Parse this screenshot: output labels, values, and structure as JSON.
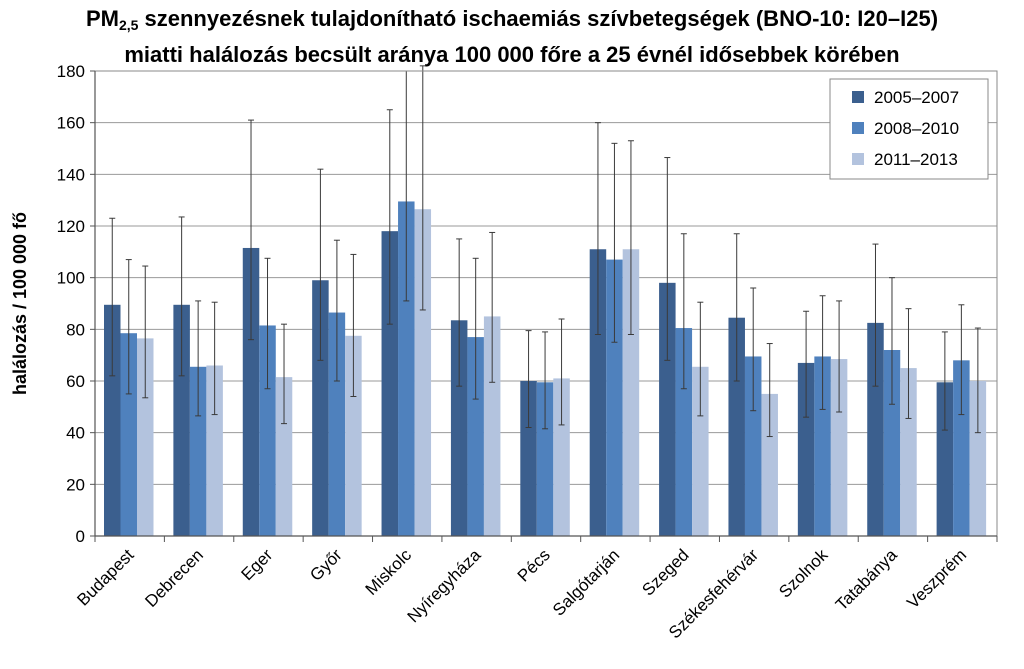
{
  "title": {
    "line1_prefix": "PM",
    "line1_sub": "2,5",
    "line1_rest": " szennyezésnek tulajdonítható ischaemiás szívbetegségek (BNO-10: I20–I25)",
    "line2": "miatti halálozás becsült aránya 100 000 főre a 25 évnél idősebbek körében"
  },
  "chart_data": {
    "type": "bar",
    "title": "PM2,5 szennyezésnek tulajdonítható ischaemiás szívbetegségek (BNO-10: I20–I25) miatti halálozás becsült aránya 100 000 főre a 25 évnél idősebbek körében",
    "xlabel": "",
    "ylabel": "halálozás / 100 000 fő",
    "ylim": [
      0,
      180
    ],
    "yticks": [
      0,
      20,
      40,
      60,
      80,
      100,
      120,
      140,
      160,
      180
    ],
    "grid": true,
    "legend_position": "top-right",
    "categories": [
      "Budapest",
      "Debrecen",
      "Eger",
      "Győr",
      "Miskolc",
      "Nyíregyháza",
      "Pécs",
      "Salgótarján",
      "Szeged",
      "Székesfehérvár",
      "Szolnok",
      "Tatabánya",
      "Veszprém"
    ],
    "series": [
      {
        "name": "2005–2007",
        "color": "#3b5f8e",
        "values": [
          89.5,
          89.5,
          111.5,
          99,
          118,
          83.5,
          60,
          111,
          98,
          84.5,
          67,
          82.5,
          59.5
        ],
        "error_low": [
          62,
          62,
          76,
          68,
          82,
          58,
          42,
          78,
          68,
          60,
          46,
          58,
          41
        ],
        "error_high": [
          123,
          123.5,
          161,
          142,
          165,
          115,
          79.5,
          160,
          146.5,
          117,
          87,
          113,
          79
        ]
      },
      {
        "name": "2008–2010",
        "color": "#4f81bd",
        "values": [
          78.5,
          65.5,
          81.5,
          86.5,
          129.5,
          77,
          59.5,
          107,
          80.5,
          69.5,
          69.5,
          72,
          68
        ],
        "error_low": [
          55,
          46.5,
          57,
          60,
          91,
          53,
          41.5,
          75,
          57,
          48.5,
          49,
          51,
          47
        ],
        "error_high": [
          107,
          91,
          107.5,
          114.5,
          180,
          107.5,
          79,
          152,
          117,
          96,
          93,
          100,
          89.5
        ]
      },
      {
        "name": "2011–2013",
        "color": "#b3c3de",
        "values": [
          76.5,
          66,
          61.5,
          77.5,
          126.5,
          85,
          61,
          111,
          65.5,
          55,
          68.5,
          65,
          60
        ],
        "error_low": [
          53.5,
          47,
          43.5,
          54,
          87.5,
          59.5,
          43,
          78,
          46.5,
          38.5,
          48,
          45.5,
          40
        ],
        "error_high": [
          104.5,
          90.5,
          82,
          109,
          182,
          117.5,
          84,
          153,
          90.5,
          74.5,
          91,
          88,
          80.5
        ]
      }
    ]
  }
}
